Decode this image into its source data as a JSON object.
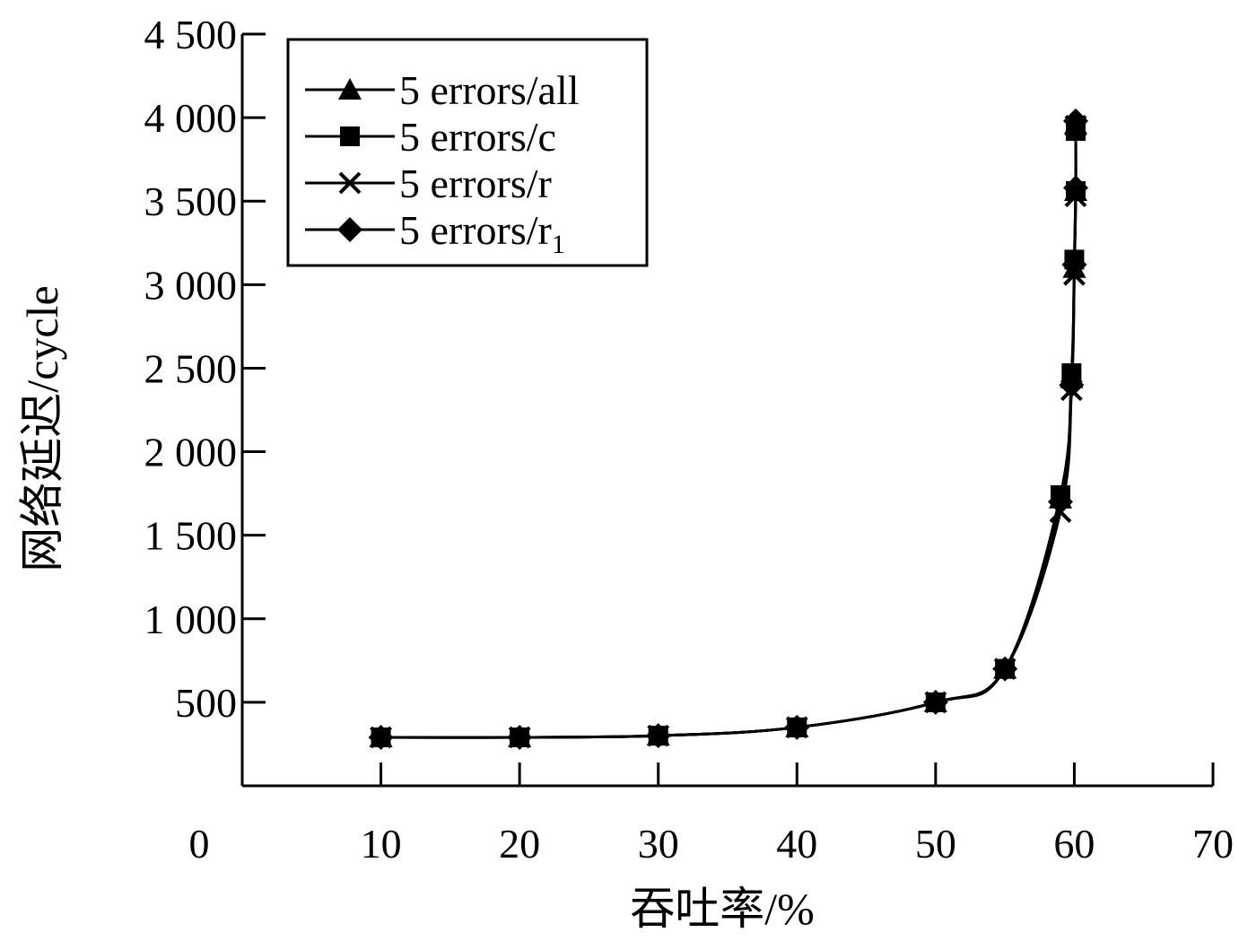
{
  "chart_data": {
    "type": "line",
    "title": "",
    "xlabel": "吞吐率/%",
    "ylabel": "网络延迟/cycle",
    "xlim": [
      0,
      70
    ],
    "ylim": [
      0,
      4500
    ],
    "x_ticks": [
      "0",
      "10",
      "20",
      "30",
      "40",
      "50",
      "60",
      "70"
    ],
    "x_tick_values": [
      0,
      10,
      20,
      30,
      40,
      50,
      60,
      70
    ],
    "y_ticks": [
      "500",
      "1 000",
      "1 500",
      "2 000",
      "2 500",
      "3 000",
      "3 500",
      "4 000",
      "4 500"
    ],
    "y_tick_values": [
      500,
      1000,
      1500,
      2000,
      2500,
      3000,
      3500,
      4000,
      4500
    ],
    "grid": false,
    "legend_position": "top-left",
    "series": [
      {
        "name": "5 errors/all",
        "marker": "triangle",
        "x": [
          10,
          20,
          30,
          40,
          50,
          55,
          59,
          59.8,
          60,
          60.1,
          60.1
        ],
        "y": [
          290,
          290,
          300,
          350,
          500,
          700,
          1720,
          2440,
          3100,
          3560,
          3960
        ]
      },
      {
        "name": "5 errors/c",
        "marker": "square",
        "x": [
          10,
          20,
          30,
          40,
          50,
          55,
          59,
          59.8,
          60,
          60.1,
          60.1
        ],
        "y": [
          290,
          290,
          300,
          350,
          500,
          700,
          1740,
          2470,
          3150,
          3560,
          3920
        ]
      },
      {
        "name": "5 errors/r",
        "marker": "x",
        "x": [
          10,
          20,
          30,
          40,
          50,
          55,
          59,
          59.8,
          60,
          60.1,
          60.1
        ],
        "y": [
          290,
          290,
          300,
          350,
          500,
          700,
          1640,
          2370,
          3060,
          3530,
          3950
        ]
      },
      {
        "name": "5 errors/r",
        "name_subscript": "1",
        "marker": "diamond",
        "x": [
          10,
          20,
          30,
          40,
          50,
          55,
          59,
          59.8,
          60,
          60.1,
          60.1
        ],
        "y": [
          290,
          290,
          300,
          350,
          500,
          700,
          1700,
          2400,
          3120,
          3580,
          3980
        ]
      }
    ]
  }
}
